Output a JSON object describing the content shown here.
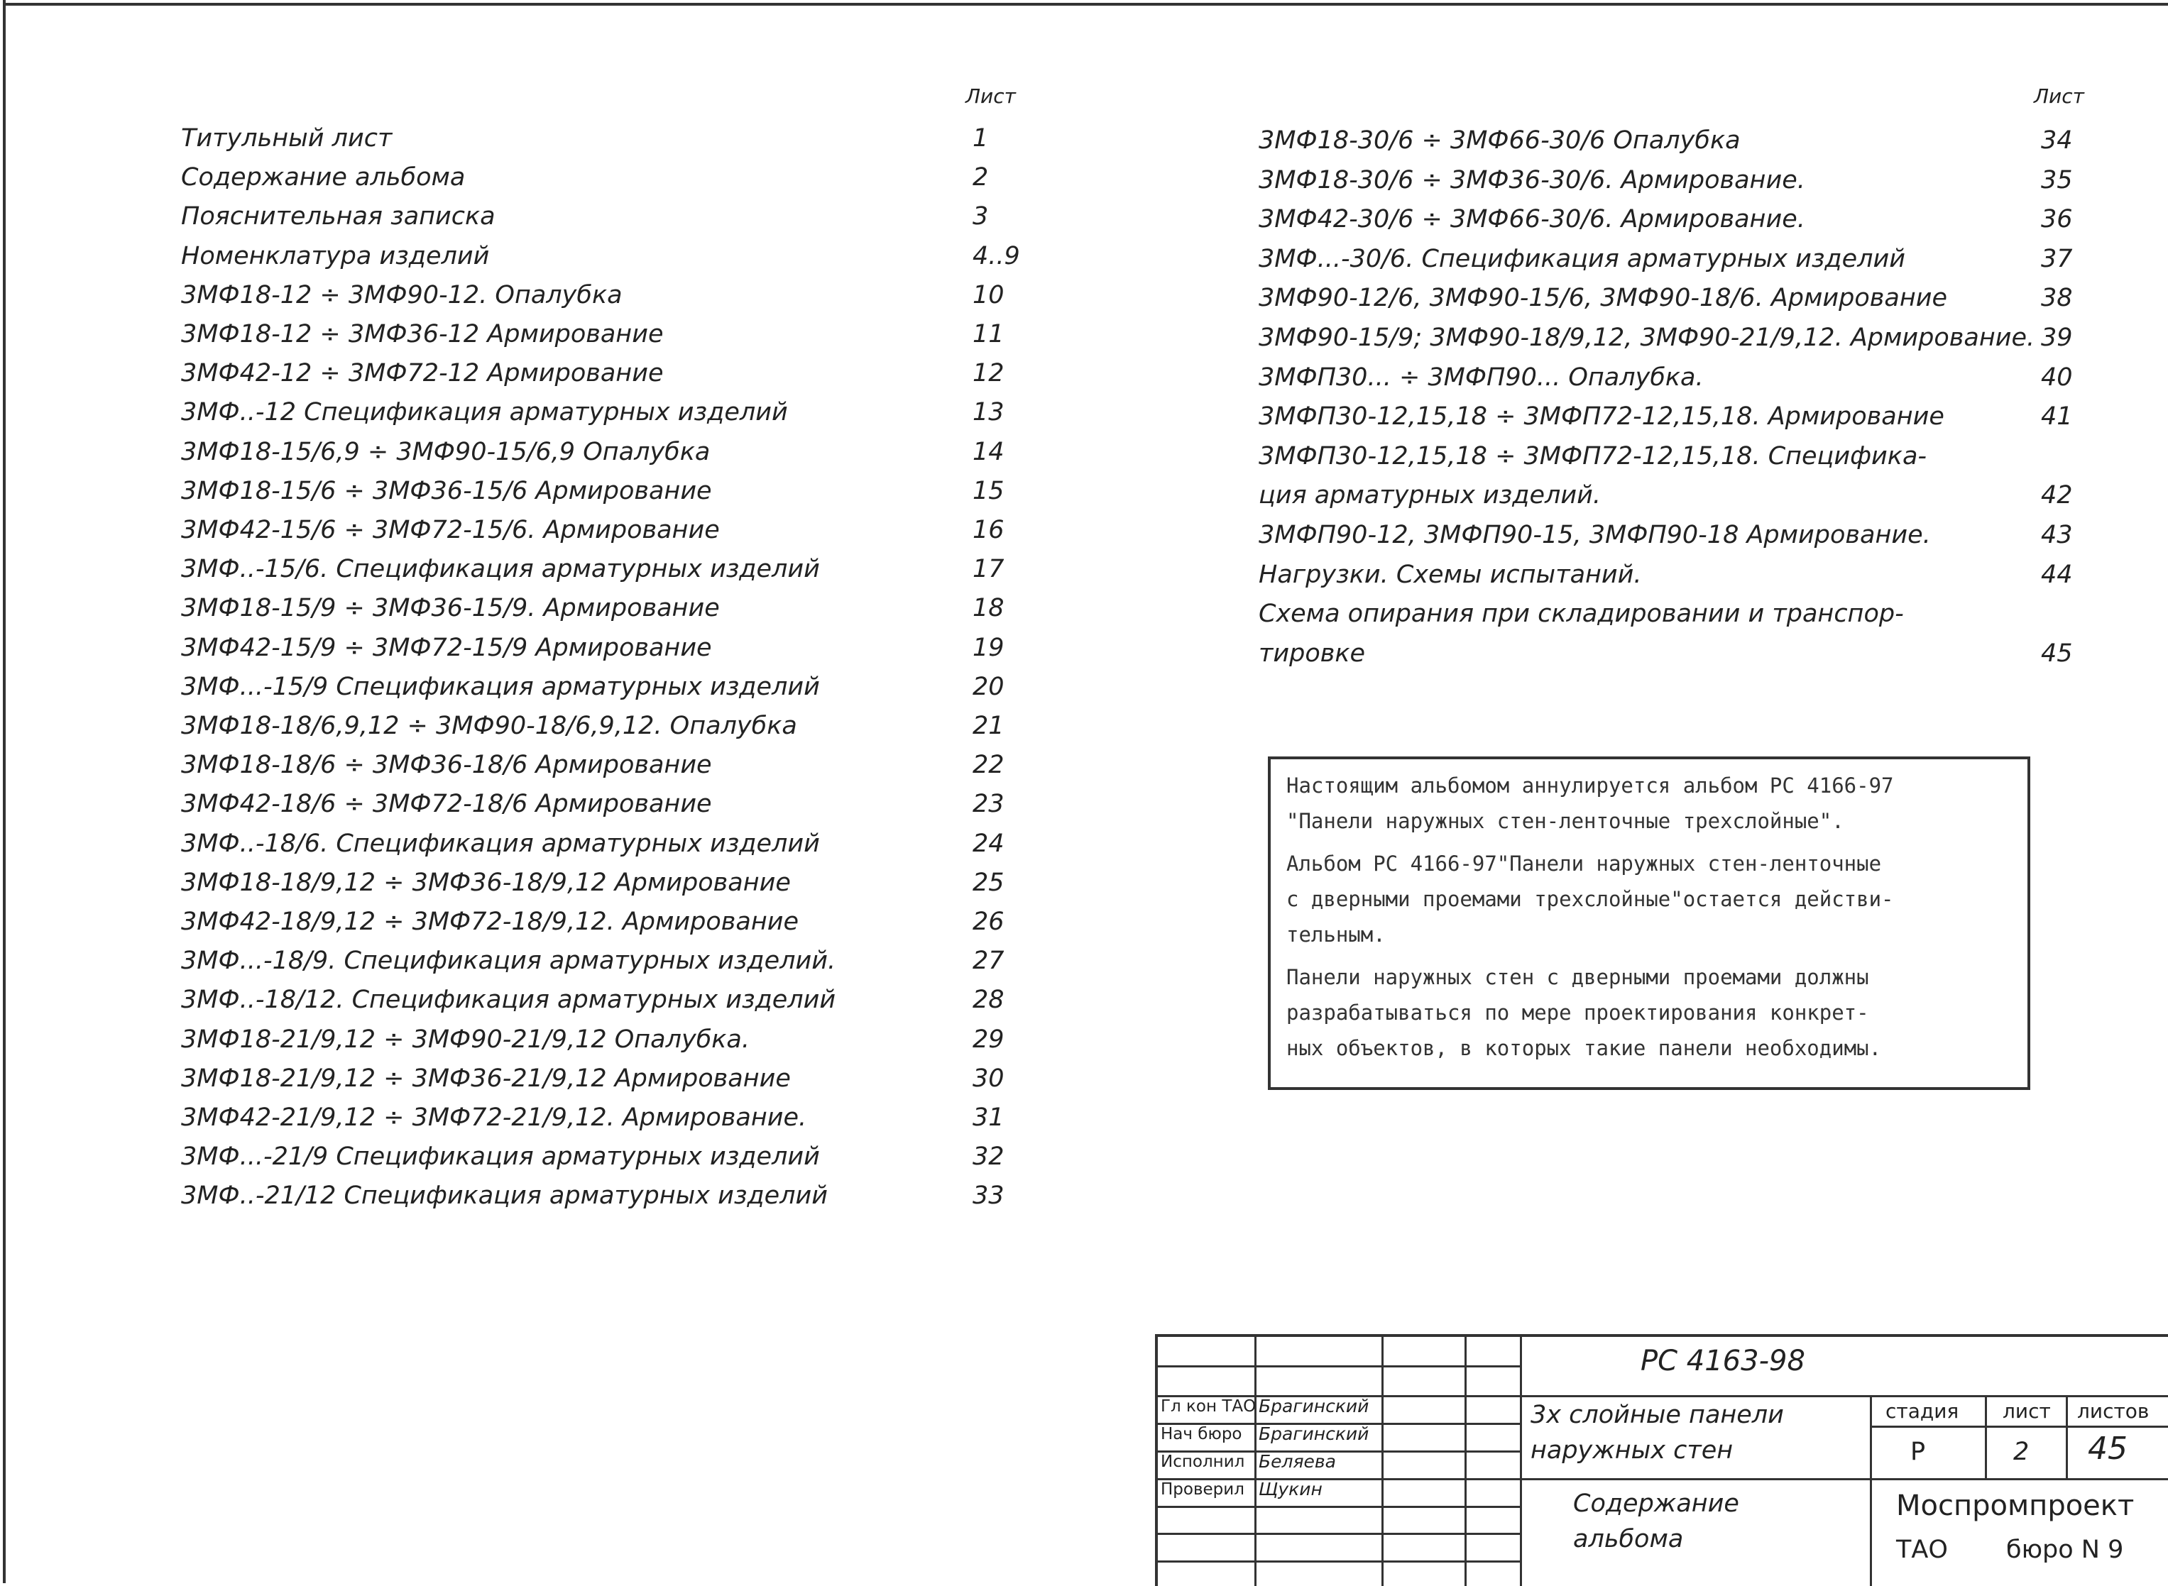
{
  "sheet_header_left": "Лист",
  "sheet_header_right": "Лист",
  "left_list": [
    {
      "text": [
        "Титульный лист"
      ],
      "sheet": "1"
    },
    {
      "text": [
        "Содержание альбома"
      ],
      "sheet": "2"
    },
    {
      "text": [
        "Пояснительная записка"
      ],
      "sheet": "3"
    },
    {
      "text": [
        "Номенклатура изделий"
      ],
      "sheet": "4..9"
    },
    {
      "text": [
        "3МФ18-12 ÷ 3МФ90-12. Опалубка"
      ],
      "sheet": "10"
    },
    {
      "text": [
        "3МФ18-12 ÷ 3МФ36-12 Армирование"
      ],
      "sheet": "11"
    },
    {
      "text": [
        "3МФ42-12 ÷ 3МФ72-12 Армирование"
      ],
      "sheet": "12"
    },
    {
      "text": [
        "3МФ..-12 Спецификация арматурных изделий"
      ],
      "sheet": "13"
    },
    {
      "text": [
        "3МФ18-15/6,9 ÷ 3МФ90-15/6,9 Опалубка"
      ],
      "sheet": "14"
    },
    {
      "text": [
        "3МФ18-15/6 ÷ 3МФ36-15/6 Армирование"
      ],
      "sheet": "15"
    },
    {
      "text": [
        "3МФ42-15/6 ÷ 3МФ72-15/6. Армирование"
      ],
      "sheet": "16"
    },
    {
      "text": [
        "3МФ..-15/6. Спецификация арматурных изделий"
      ],
      "sheet": "17"
    },
    {
      "text": [
        "3МФ18-15/9 ÷ 3МФ36-15/9. Армирование"
      ],
      "sheet": "18"
    },
    {
      "text": [
        "3МФ42-15/9 ÷ 3МФ72-15/9 Армирование"
      ],
      "sheet": "19"
    },
    {
      "text": [
        "3МФ...-15/9 Спецификация арматурных изделий"
      ],
      "sheet": "20"
    },
    {
      "text": [
        "3МФ18-18/6,9,12 ÷ 3МФ90-18/6,9,12. Опалубка"
      ],
      "sheet": "21"
    },
    {
      "text": [
        "3МФ18-18/6 ÷ 3МФ36-18/6 Армирование"
      ],
      "sheet": "22"
    },
    {
      "text": [
        "3МФ42-18/6 ÷ 3МФ72-18/6 Армирование"
      ],
      "sheet": "23"
    },
    {
      "text": [
        "3МФ..-18/6. Спецификация арматурных изделий"
      ],
      "sheet": "24"
    },
    {
      "text": [
        "3МФ18-18/9,12 ÷ 3МФ36-18/9,12 Армирование"
      ],
      "sheet": "25"
    },
    {
      "text": [
        "3МФ42-18/9,12 ÷ 3МФ72-18/9,12. Армирование"
      ],
      "sheet": "26"
    },
    {
      "text": [
        "3МФ...-18/9. Спецификация арматурных изделий."
      ],
      "sheet": "27"
    },
    {
      "text": [
        "3МФ..-18/12. Спецификация арматурных изделий"
      ],
      "sheet": "28"
    },
    {
      "text": [
        "3МФ18-21/9,12 ÷ 3МФ90-21/9,12 Опалубка."
      ],
      "sheet": "29"
    },
    {
      "text": [
        "3МФ18-21/9,12 ÷ 3МФ36-21/9,12 Армирование"
      ],
      "sheet": "30"
    },
    {
      "text": [
        "3МФ42-21/9,12 ÷ 3МФ72-21/9,12. Армирование."
      ],
      "sheet": "31"
    },
    {
      "text": [
        "3МФ...-21/9 Спецификация арматурных изделий"
      ],
      "sheet": "32"
    },
    {
      "text": [
        "3МФ..-21/12 Спецификация арматурных изделий"
      ],
      "sheet": "33"
    }
  ],
  "right_list": [
    {
      "text": [
        "3МФ18-30/6 ÷ 3МФ66-30/6 Опалубка"
      ],
      "sheet": "34"
    },
    {
      "text": [
        "3МФ18-30/6 ÷ 3МФ36-30/6. Армирование."
      ],
      "sheet": "35"
    },
    {
      "text": [
        "3МФ42-30/6 ÷ 3МФ66-30/6. Армирование."
      ],
      "sheet": "36"
    },
    {
      "text": [
        "3МФ...-30/6. Спецификация арматурных изделий"
      ],
      "sheet": "37"
    },
    {
      "text": [
        "3МФ90-12/6, 3МФ90-15/6, 3МФ90-18/6. Армирование"
      ],
      "sheet": "38"
    },
    {
      "text": [
        "3МФ90-15/9; 3МФ90-18/9,12, 3МФ90-21/9,12. Армирование."
      ],
      "sheet": "39"
    },
    {
      "text": [
        "3МФП30... ÷ 3МФП90... Опалубка."
      ],
      "sheet": "40"
    },
    {
      "text": [
        "3МФП30-12,15,18 ÷ 3МФП72-12,15,18. Армирование"
      ],
      "sheet": "41"
    },
    {
      "text": [
        "3МФП30-12,15,18 ÷ 3МФП72-12,15,18. Специфика-",
        "ция арматурных изделий."
      ],
      "sheet": "42"
    },
    {
      "text": [
        "3МФП90-12, 3МФП90-15, 3МФП90-18 Армирование."
      ],
      "sheet": "43"
    },
    {
      "text": [
        "Нагрузки. Схемы испытаний."
      ],
      "sheet": "44"
    },
    {
      "text": [
        "Схема опирания при складировании и транспор-",
        "тировке"
      ],
      "sheet": "45"
    }
  ],
  "note": [
    [
      "Настоящим альбомом аннулируется альбом РС 4166-97",
      "\"Панели наружных стен-ленточные трехслойные\"."
    ],
    [
      "Альбом РС 4166-97\"Панели наружных стен-ленточные",
      "с дверными проемами трехслойные\"остается действи-",
      "тельным."
    ],
    [
      "Панели наружных стен с дверными проемами должны",
      "разрабатываться по мере проектирования конкрет-",
      "ных объектов, в которых такие панели необходимы."
    ]
  ],
  "title_block": {
    "code": "РС 4163-98",
    "signatures": [
      {
        "role": "Гл кон ТАО",
        "name": "Брагинский"
      },
      {
        "role": "Нач бюро",
        "name": "Брагинский"
      },
      {
        "role": "Исполнил",
        "name": "Беляева"
      },
      {
        "role": "Проверил",
        "name": "Щукин"
      }
    ],
    "product": [
      "3х слойные панели",
      "наружных стен"
    ],
    "sheet_title": [
      "Содержание",
      "альбома"
    ],
    "stage_label": "стадия",
    "sheet_label": "лист",
    "sheets_label": "листов",
    "stage": "Р",
    "sheet": "2",
    "sheets": "45",
    "organization": "Моспромпроект",
    "department": "ТАО",
    "bureau": "бюро N 9"
  }
}
